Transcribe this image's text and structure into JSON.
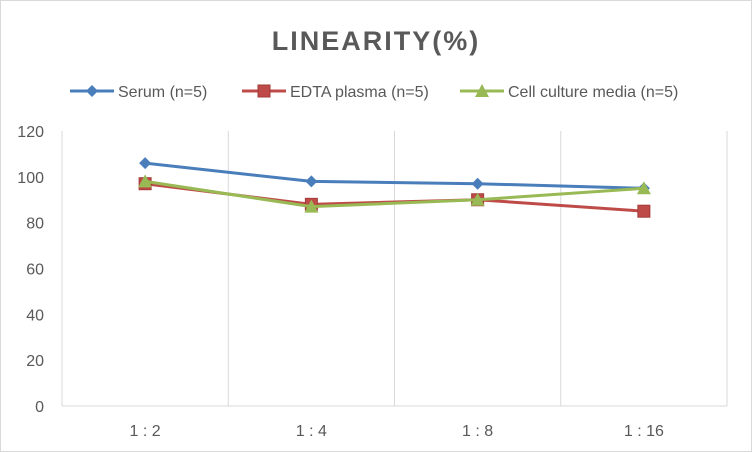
{
  "chart_data": {
    "type": "line",
    "title": "LINEARITY(%)",
    "categories": [
      "1:2",
      "1:4",
      "1:8",
      "1:16"
    ],
    "ylim": [
      0,
      120
    ],
    "yticks": [
      0,
      20,
      40,
      60,
      80,
      100,
      120
    ],
    "grid": "vertical",
    "legend_placement": "top",
    "series": [
      {
        "name": "Serum (n=5)",
        "values": [
          106,
          98,
          97,
          95
        ],
        "color": "#4a7ebb",
        "marker": "diamond"
      },
      {
        "name": "EDTA plasma (n=5)",
        "values": [
          97,
          88,
          90,
          85
        ],
        "color": "#be4b48",
        "marker": "square"
      },
      {
        "name": "Cell culture media (n=5)",
        "values": [
          98,
          87,
          90,
          95
        ],
        "color": "#98b954",
        "marker": "triangle"
      }
    ]
  }
}
